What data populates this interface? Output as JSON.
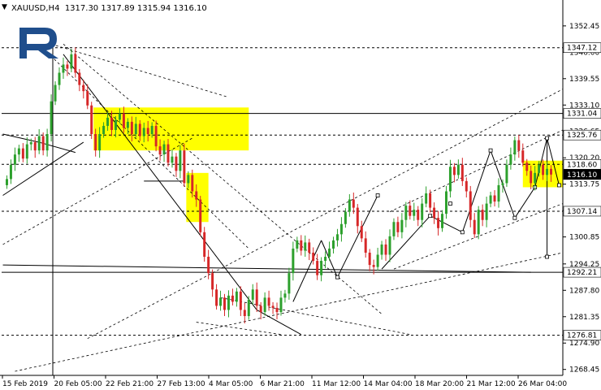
{
  "header": {
    "symbol": "XAUUSD,H4",
    "ohlc": "1317.30 1317.89 1315.94 1316.10"
  },
  "colors": {
    "bull": "#2ca02c",
    "bear": "#d62728",
    "zone": "#ffff00",
    "line": "#000000",
    "dashed": "#000000",
    "label_bg": "#ffffff"
  },
  "chart_data": {
    "type": "candlestick",
    "ylim": [
      1267.0,
      1356.0
    ],
    "y_ticks": [
      "1352.45",
      "1346.00",
      "1339.55",
      "1333.10",
      "1326.65",
      "1320.20",
      "1313.75",
      "1307.30",
      "1300.85",
      "1294.25",
      "1287.80",
      "1281.35",
      "1274.90",
      "1268.45"
    ],
    "x_labels": [
      "15 Feb 2019",
      "20 Feb 05:00",
      "22 Feb 21:00",
      "27 Feb 13:00",
      "4 Mar 05:00",
      "6 Mar 21:00",
      "11 Mar 12:00",
      "14 Mar 04:00",
      "18 Mar 20:00",
      "21 Mar 12:00",
      "26 Mar 04:00"
    ],
    "level_labels": [
      {
        "value": 1347.12,
        "text": "1347.12",
        "style": "dashed"
      },
      {
        "value": 1331.04,
        "text": "1331.04",
        "style": "solid"
      },
      {
        "value": 1325.76,
        "text": "1325.76",
        "style": "dashed"
      },
      {
        "value": 1318.6,
        "text": "1318.60",
        "style": "dashed"
      },
      {
        "value": 1316.1,
        "text": "1316.10",
        "style": "current"
      },
      {
        "value": 1307.14,
        "text": "1307.14",
        "style": "dashed"
      },
      {
        "value": 1292.21,
        "text": "1292.21",
        "style": "solid"
      },
      {
        "value": 1276.81,
        "text": "1276.81",
        "style": "dashed"
      }
    ],
    "zones": [
      {
        "x_from": 21.5,
        "x_to": 60.0,
        "y_from": 1322.0,
        "y_to": 1332.5
      },
      {
        "x_from": 44.5,
        "x_to": 50.0,
        "y_from": 1304.5,
        "y_to": 1316.5
      },
      {
        "x_from": 128.0,
        "x_to": 140.0,
        "y_from": 1313.0,
        "y_to": 1319.5
      }
    ],
    "closes": [
      1315.0,
      1318.5,
      1321.0,
      1322.5,
      1320.0,
      1323.5,
      1324.0,
      1322.0,
      1325.5,
      1322.0,
      1326.0,
      1334.0,
      1338.0,
      1341.0,
      1343.0,
      1342.0,
      1345.5,
      1341.0,
      1338.0,
      1336.5,
      1333.0,
      1326.0,
      1322.0,
      1326.0,
      1328.0,
      1330.0,
      1327.0,
      1329.5,
      1331.0,
      1327.5,
      1329.0,
      1326.0,
      1328.5,
      1325.5,
      1327.5,
      1326.0,
      1328.0,
      1323.0,
      1321.0,
      1323.5,
      1319.0,
      1320.5,
      1317.0,
      1322.0,
      1314.0,
      1316.0,
      1312.0,
      1310.0,
      1302.0,
      1296.0,
      1292.0,
      1288.0,
      1284.0,
      1286.0,
      1283.0,
      1286.5,
      1285.0,
      1287.5,
      1283.0,
      1281.5,
      1285.5,
      1288.0,
      1284.0,
      1282.5,
      1286.0,
      1284.0,
      1283.5,
      1282.5,
      1286.0,
      1287.0,
      1292.0,
      1298.0,
      1300.0,
      1297.5,
      1299.5,
      1297.0,
      1295.0,
      1291.5,
      1295.0,
      1296.0,
      1298.0,
      1300.0,
      1301.5,
      1304.0,
      1307.0,
      1310.0,
      1308.0,
      1303.5,
      1300.5,
      1297.0,
      1294.0,
      1293.5,
      1296.5,
      1299.0,
      1296.5,
      1301.0,
      1304.5,
      1302.0,
      1305.0,
      1308.5,
      1306.0,
      1307.5,
      1305.0,
      1309.0,
      1311.5,
      1308.0,
      1305.5,
      1303.0,
      1306.5,
      1312.0,
      1318.0,
      1316.0,
      1318.5,
      1314.5,
      1312.0,
      1305.0,
      1301.5,
      1307.5,
      1305.0,
      1309.0,
      1311.0,
      1309.5,
      1313.5,
      1314.0,
      1318.5,
      1321.0,
      1324.5,
      1322.0,
      1319.0,
      1317.0,
      1314.0,
      1316.5,
      1318.5,
      1316.0,
      1317.5,
      1316.1
    ]
  }
}
